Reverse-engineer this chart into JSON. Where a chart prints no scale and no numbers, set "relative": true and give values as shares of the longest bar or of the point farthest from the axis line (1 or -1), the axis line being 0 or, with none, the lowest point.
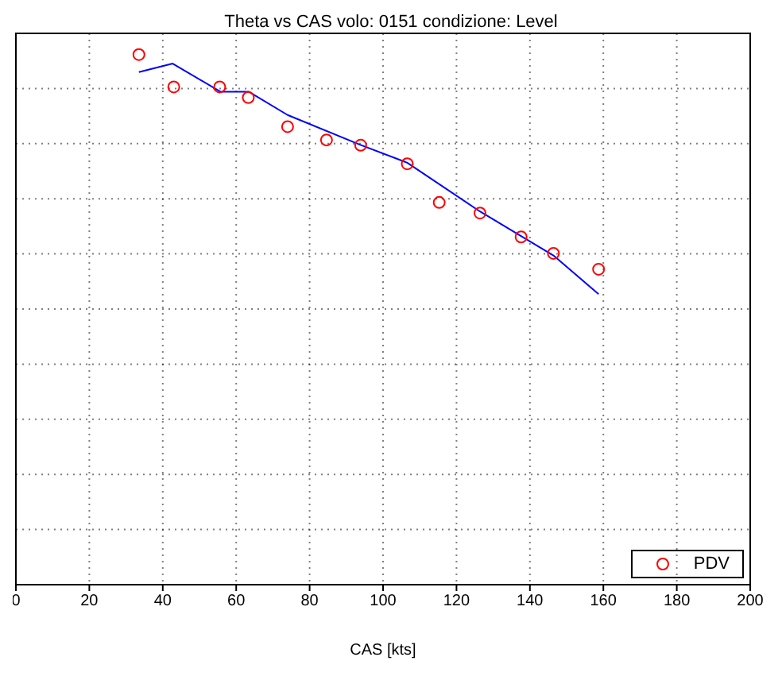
{
  "chart_data": {
    "type": "scatter",
    "title": "Theta vs CAS volo: 0151 condizione: Level",
    "xlabel": "CAS [kts]",
    "xlim": [
      0,
      200
    ],
    "xticks": [
      0,
      20,
      40,
      60,
      80,
      100,
      120,
      140,
      160,
      180,
      200
    ],
    "relative": true,
    "grid": true,
    "legend": "bottom right",
    "series": [
      {
        "name": "PDV",
        "color": "#ff0000",
        "marker": "circle",
        "x": [
          33.5,
          43.0,
          55.5,
          63.3,
          74.0,
          84.6,
          93.9,
          106.6,
          115.3,
          126.4,
          137.6,
          146.4,
          158.7
        ],
        "values": [
          1.0,
          0.939,
          0.939,
          0.919,
          0.864,
          0.839,
          0.829,
          0.794,
          0.721,
          0.701,
          0.656,
          0.625,
          0.595
        ]
      },
      {
        "type": "line",
        "color": "#0000ff",
        "marker": "none",
        "line_style": "solid",
        "x": [
          33.5,
          42.7,
          55.7,
          63.4,
          74.0,
          93.7,
          106.6,
          126.4,
          146.4,
          158.7
        ],
        "values": [
          0.967,
          0.983,
          0.93,
          0.93,
          0.886,
          0.83,
          0.796,
          0.704,
          0.621,
          0.548
        ]
      }
    ]
  }
}
